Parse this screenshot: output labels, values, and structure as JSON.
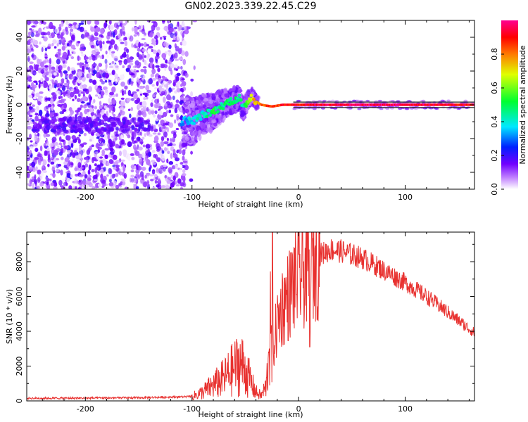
{
  "title": "GN02.2023.339.22.45.C29",
  "chart_data": [
    {
      "type": "heatmap",
      "xlabel": "Height of straight line (km)",
      "ylabel": "Frequency (Hz)",
      "xlim": [
        -255,
        165
      ],
      "ylim": [
        -50,
        50
      ],
      "xticks": [
        -200,
        -100,
        0,
        100
      ],
      "yticks": [
        -40,
        -20,
        0,
        20,
        40
      ],
      "colorbar": {
        "label": "Normalized spectral amplitude",
        "range": [
          0,
          1
        ],
        "ticks": [
          0.0,
          0.2,
          0.4,
          0.6,
          0.8
        ]
      },
      "trace": {
        "x": [
          -110,
          -105,
          -100,
          -95,
          -90,
          -85,
          -80,
          -75,
          -70,
          -65,
          -60,
          -55,
          -52,
          -48,
          -44,
          -40,
          -35,
          -30,
          -25,
          -20,
          -15,
          -10,
          -5,
          0,
          20,
          50,
          100,
          160
        ],
        "frequency": [
          -10,
          -9,
          -10,
          -8,
          -6,
          -5,
          -4,
          -2,
          0,
          2,
          3,
          4,
          -3,
          2,
          5,
          2,
          0,
          -0.5,
          -1,
          -0.5,
          0,
          0,
          0,
          0,
          0,
          0,
          0,
          0
        ],
        "amplitude": [
          0.3,
          0.35,
          0.4,
          0.4,
          0.4,
          0.45,
          0.5,
          0.45,
          0.45,
          0.5,
          0.5,
          0.45,
          0.45,
          0.6,
          0.7,
          0.75,
          0.8,
          0.85,
          0.9,
          0.85,
          0.9,
          0.9,
          0.9,
          0.9,
          0.95,
          0.95,
          0.95,
          0.9
        ]
      }
    },
    {
      "type": "line",
      "xlabel": "Height of straight line (km)",
      "ylabel": "SNR (10 * v/v)",
      "xlim": [
        -255,
        165
      ],
      "ylim": [
        0,
        9700
      ],
      "xticks": [
        -200,
        -100,
        0,
        100
      ],
      "yticks": [
        0,
        2000,
        4000,
        6000,
        8000
      ],
      "color": "#e8312f",
      "series": [
        {
          "name": "SNR",
          "x": [
            -255,
            -200,
            -150,
            -100,
            -90,
            -80,
            -70,
            -60,
            -55,
            -50,
            -45,
            -40,
            -35,
            -30,
            -27,
            -25,
            -20,
            -15,
            -10,
            -5,
            0,
            10,
            20,
            30,
            40,
            60,
            80,
            100,
            120,
            140,
            165
          ],
          "y": [
            150,
            160,
            180,
            250,
            500,
            900,
            1300,
            1900,
            2200,
            1800,
            1100,
            500,
            300,
            900,
            4500,
            2500,
            4500,
            5500,
            6000,
            6700,
            7000,
            7700,
            8400,
            8700,
            8600,
            8200,
            7500,
            6800,
            6000,
            5100,
            3900
          ]
        }
      ]
    }
  ]
}
